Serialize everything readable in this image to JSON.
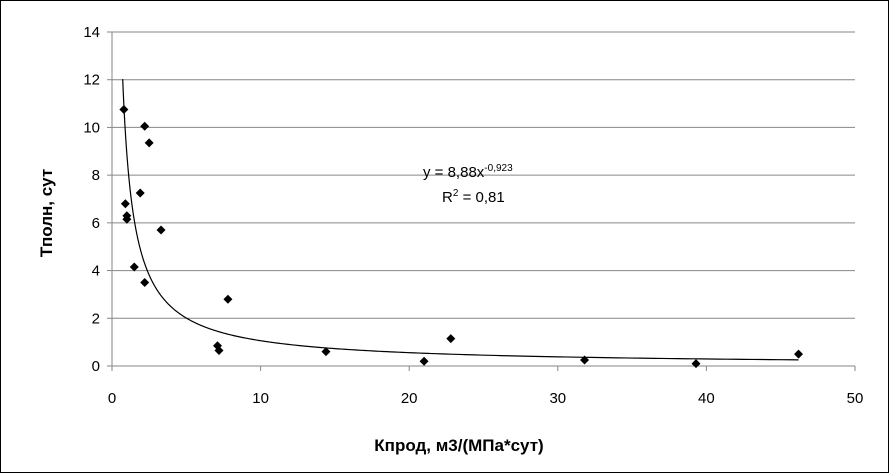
{
  "chart_data": {
    "type": "scatter",
    "title": "",
    "xlabel": "Кпрод, м3/(МПа*сут)",
    "ylabel": "Тполн, сут",
    "xlim": [
      0,
      50
    ],
    "ylim": [
      0,
      14
    ],
    "x_ticks": [
      "0",
      "10",
      "20",
      "30",
      "40",
      "50"
    ],
    "y_ticks": [
      "0",
      "2",
      "4",
      "6",
      "8",
      "10",
      "12",
      "14"
    ],
    "grid": {
      "horizontal": true,
      "vertical": false
    },
    "legend": "none",
    "marker": "diamond",
    "marker_color": "#000000",
    "points": [
      {
        "x": 0.8,
        "y": 10.75
      },
      {
        "x": 0.9,
        "y": 6.8
      },
      {
        "x": 1.0,
        "y": 6.3
      },
      {
        "x": 1.0,
        "y": 6.15
      },
      {
        "x": 1.5,
        "y": 4.15
      },
      {
        "x": 1.9,
        "y": 7.25
      },
      {
        "x": 2.2,
        "y": 10.05
      },
      {
        "x": 2.2,
        "y": 3.5
      },
      {
        "x": 2.5,
        "y": 9.35
      },
      {
        "x": 3.3,
        "y": 5.7
      },
      {
        "x": 7.1,
        "y": 0.85
      },
      {
        "x": 7.2,
        "y": 0.65
      },
      {
        "x": 7.8,
        "y": 2.8
      },
      {
        "x": 14.4,
        "y": 0.6
      },
      {
        "x": 21.0,
        "y": 0.2
      },
      {
        "x": 22.8,
        "y": 1.15
      },
      {
        "x": 31.8,
        "y": 0.25
      },
      {
        "x": 39.3,
        "y": 0.1
      },
      {
        "x": 46.2,
        "y": 0.5
      }
    ],
    "trendline": {
      "type": "power",
      "coefficient": 8.88,
      "exponent": -0.923,
      "x_range": [
        0.72,
        46.2
      ],
      "equation_base": "y = 8,88x",
      "equation_exponent": "-0,923",
      "r2_label": "R",
      "r2_sup": "2",
      "r2_value": " = 0,81"
    }
  }
}
